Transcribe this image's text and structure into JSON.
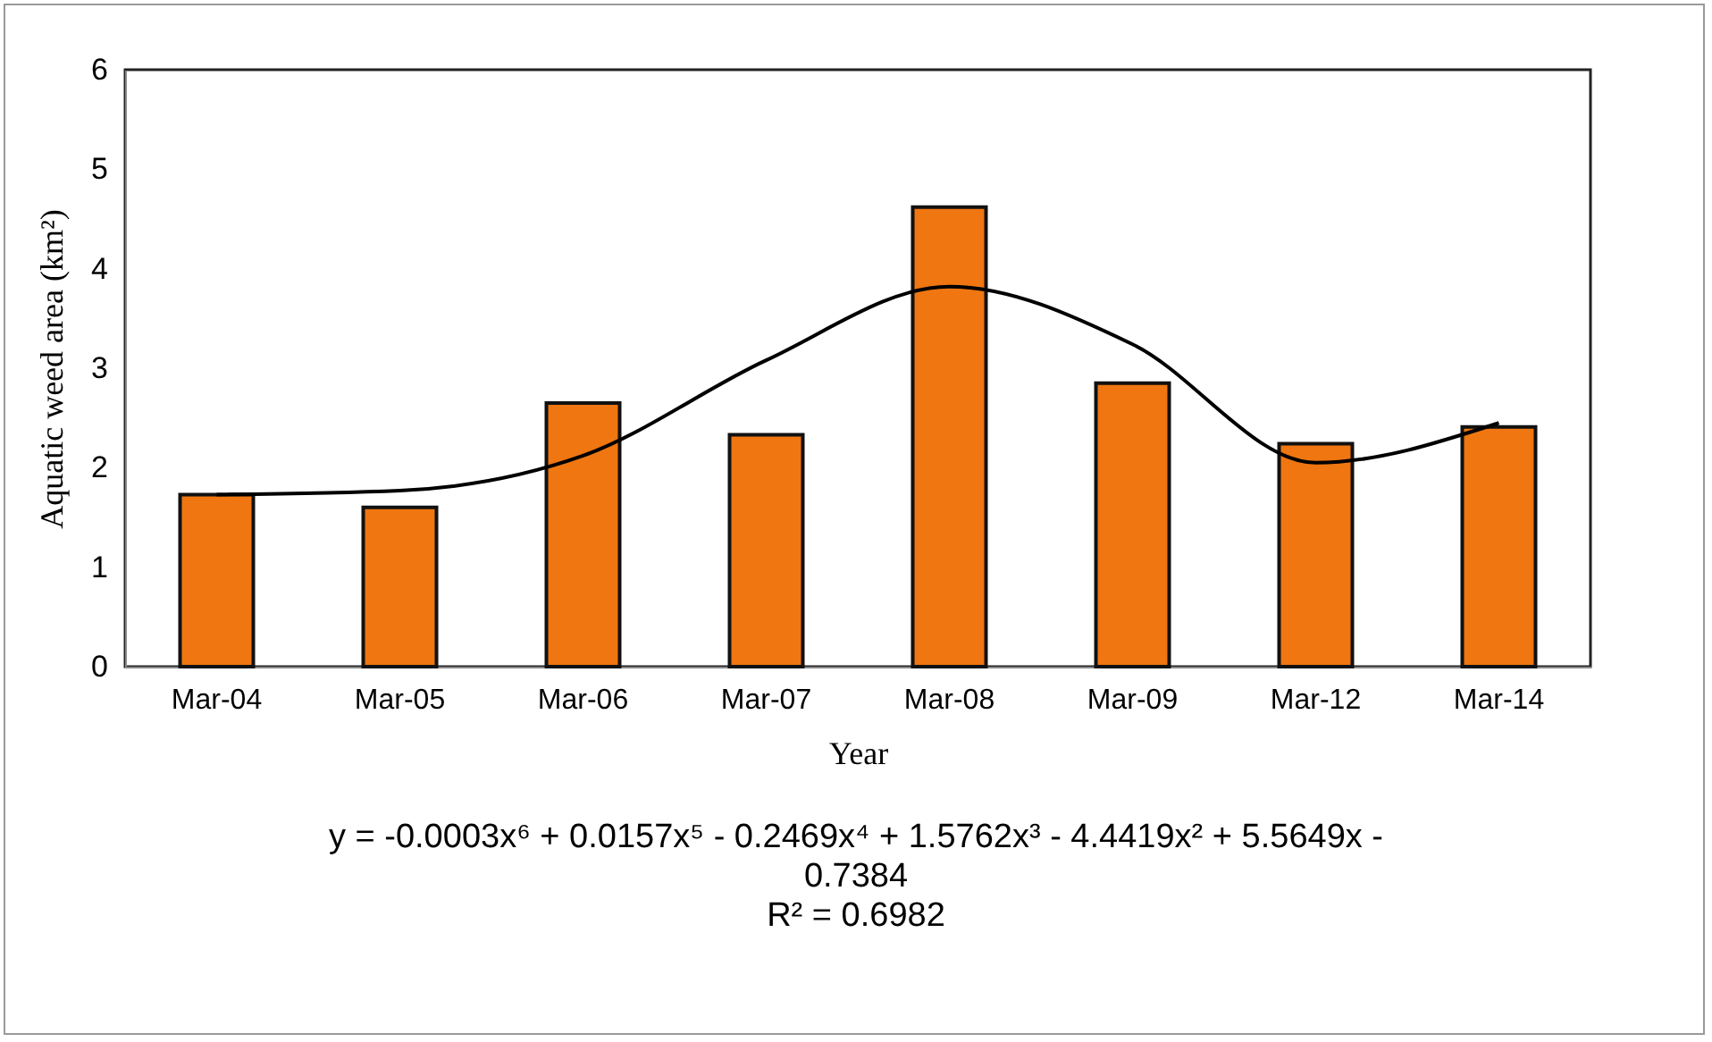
{
  "chart_data": {
    "type": "bar",
    "xlabel": "Year",
    "ylabel": "Aquatic weed area (km²)",
    "categories": [
      "Mar-04",
      "Mar-05",
      "Mar-06",
      "Mar-07",
      "Mar-08",
      "Mar-09",
      "Mar-12",
      "Mar-14"
    ],
    "series": [
      {
        "type": "bar",
        "color": "#ef7610",
        "values": [
          1.73,
          1.6,
          2.65,
          2.33,
          4.62,
          2.85,
          2.24,
          2.41
        ]
      },
      {
        "type": "line",
        "color": "#000000",
        "values": [
          1.73,
          1.77,
          2.12,
          3.08,
          3.82,
          3.24,
          2.05,
          2.45
        ]
      }
    ],
    "ylim": [
      0,
      6
    ],
    "yticks": [
      0,
      1,
      2,
      3,
      4,
      5,
      6
    ],
    "line_style": "solid",
    "marker": "none",
    "annotations": [
      "y = -0.0003x⁶ + 0.0157x⁵ - 0.2469x⁴ + 1.5762x³ - 4.4419x² + 5.5649x - 0.7384",
      "R² = 0.6982"
    ]
  }
}
